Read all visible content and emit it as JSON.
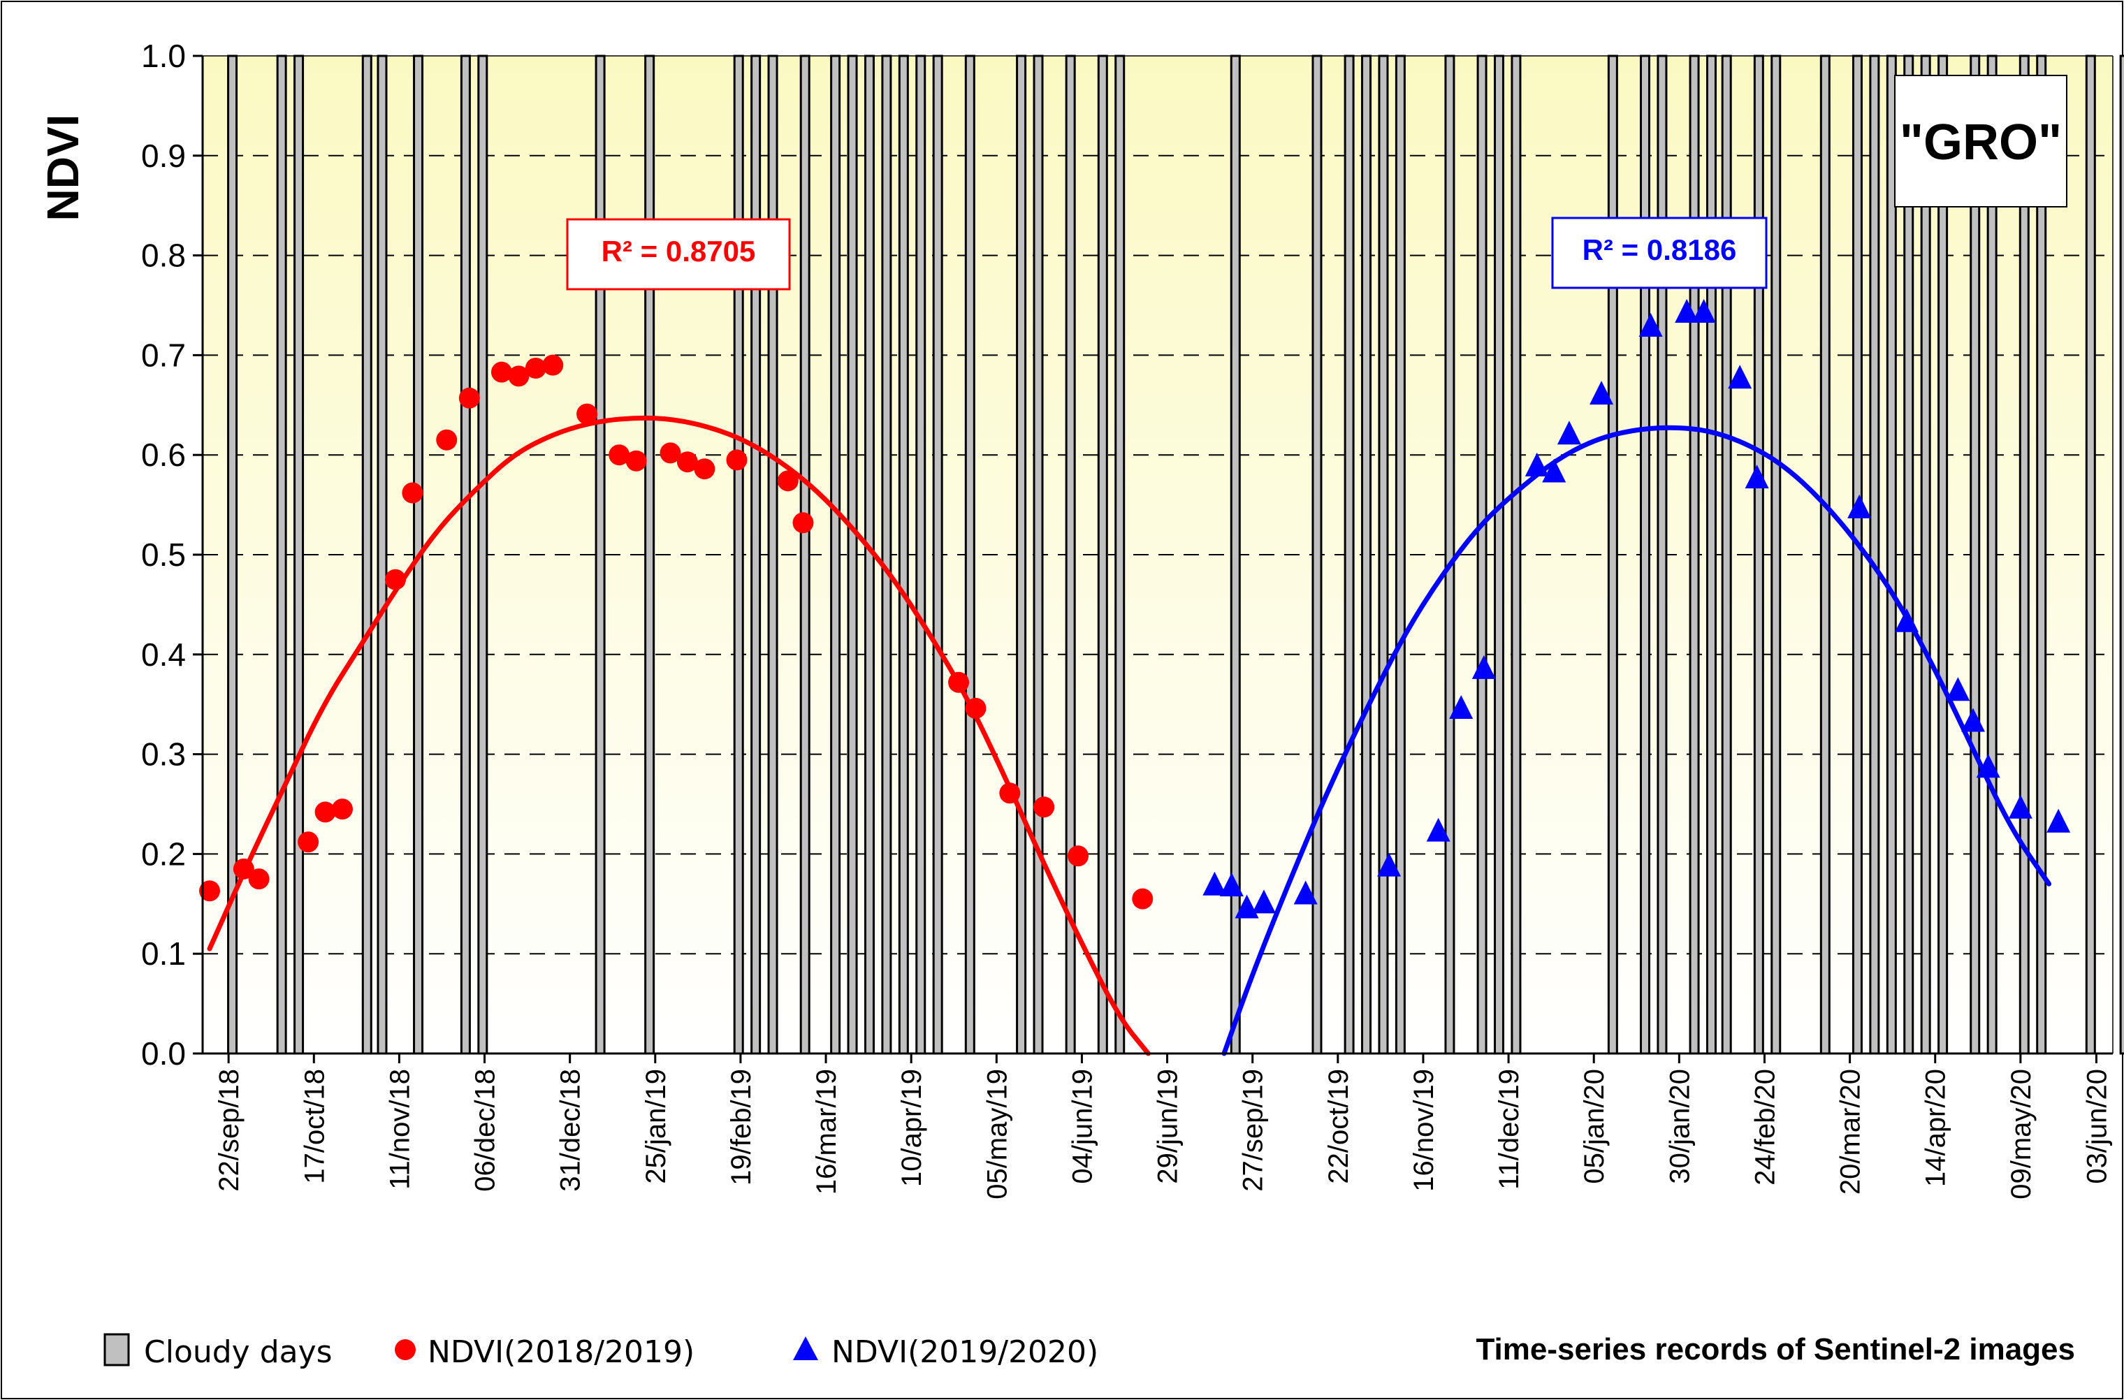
{
  "chart_data": {
    "type": "scatter",
    "ylabel": "NDVI",
    "xlabel": "Time-series records of Sentinel-2 images",
    "ylim": [
      0,
      1
    ],
    "yticks": [
      "0.0",
      "0.1",
      "0.2",
      "0.3",
      "0.4",
      "0.5",
      "0.6",
      "0.7",
      "0.8",
      "0.9",
      "1.0"
    ],
    "xlim": [
      0,
      100
    ],
    "xticks": [
      {
        "x": 1.0,
        "label": "22/sep/18"
      },
      {
        "x": 5.5,
        "label": "17/oct/18"
      },
      {
        "x": 10.0,
        "label": "11/nov/18"
      },
      {
        "x": 14.5,
        "label": "06/dec/18"
      },
      {
        "x": 19.0,
        "label": "31/dec/18"
      },
      {
        "x": 23.5,
        "label": "25/jan/19"
      },
      {
        "x": 28.0,
        "label": "19/feb/19"
      },
      {
        "x": 32.5,
        "label": "16/mar/19"
      },
      {
        "x": 37.0,
        "label": "10/apr/19"
      },
      {
        "x": 41.5,
        "label": "05/may/19"
      },
      {
        "x": 46.0,
        "label": "04/jun/19"
      },
      {
        "x": 50.5,
        "label": "29/jun/19"
      },
      {
        "x": 55.0,
        "label": "27/sep/19"
      },
      {
        "x": 59.5,
        "label": "22/oct/19"
      },
      {
        "x": 64.0,
        "label": "16/nov/19"
      },
      {
        "x": 68.5,
        "label": "11/dec/19"
      },
      {
        "x": 73.0,
        "label": "05/jan/20"
      },
      {
        "x": 77.5,
        "label": "30/jan/20"
      },
      {
        "x": 82.0,
        "label": "24/feb/20"
      },
      {
        "x": 86.5,
        "label": "20/mar/20"
      },
      {
        "x": 91.0,
        "label": "14/apr/20"
      },
      {
        "x": 95.5,
        "label": "09/may/20"
      },
      {
        "x": 99.5,
        "label": "03/jun/20"
      }
    ],
    "cloudy_days": {
      "name": "Cloudy days",
      "value": 1.0,
      "color": "#bfbfbf",
      "x": [
        1.2,
        3.8,
        4.7,
        8.3,
        9.1,
        11.0,
        13.5,
        14.4,
        20.6,
        23.2,
        27.9,
        28.8,
        29.7,
        31.4,
        33.0,
        33.9,
        34.8,
        35.7,
        36.6,
        37.5,
        38.4,
        40.1,
        42.8,
        43.7,
        45.4,
        47.1,
        48.0,
        54.1,
        58.4,
        60.1,
        61.0,
        61.9,
        62.8,
        65.4,
        67.1,
        68.0,
        68.9,
        74.0,
        75.7,
        76.6,
        78.3,
        79.2,
        80.0,
        81.7,
        82.6,
        85.2,
        86.9,
        87.8,
        88.7,
        89.6,
        90.5,
        91.4,
        93.1,
        94.0,
        95.7,
        96.6,
        99.2,
        101.0
      ]
    },
    "series": [
      {
        "name": "NDVI(2018/2019)",
        "marker": "circle",
        "color": "#ff0000",
        "points": [
          [
            0,
            0.163
          ],
          [
            1.8,
            0.185
          ],
          [
            2.6,
            0.175
          ],
          [
            5.2,
            0.212
          ],
          [
            6.1,
            0.242
          ],
          [
            7.0,
            0.245
          ],
          [
            9.8,
            0.475
          ],
          [
            10.7,
            0.562
          ],
          [
            12.5,
            0.615
          ],
          [
            13.7,
            0.657
          ],
          [
            15.4,
            0.683
          ],
          [
            16.3,
            0.679
          ],
          [
            17.2,
            0.687
          ],
          [
            18.1,
            0.69
          ],
          [
            19.9,
            0.641
          ],
          [
            21.6,
            0.6
          ],
          [
            22.5,
            0.594
          ],
          [
            24.3,
            0.602
          ],
          [
            25.2,
            0.593
          ],
          [
            26.1,
            0.586
          ],
          [
            27.8,
            0.595
          ],
          [
            30.5,
            0.574
          ],
          [
            31.3,
            0.532
          ],
          [
            39.5,
            0.372
          ],
          [
            40.4,
            0.346
          ],
          [
            42.2,
            0.261
          ],
          [
            44.0,
            0.247
          ],
          [
            45.8,
            0.198
          ],
          [
            49.2,
            0.155
          ]
        ],
        "trendline": {
          "type": "poly2",
          "r2_label": "R² = 0.8705",
          "curve": [
            [
              0,
              0.105
            ],
            [
              2,
              0.19
            ],
            [
              4,
              0.27
            ],
            [
              6,
              0.35
            ],
            [
              8,
              0.41
            ],
            [
              10,
              0.47
            ],
            [
              12,
              0.525
            ],
            [
              14,
              0.565
            ],
            [
              16,
              0.6
            ],
            [
              18,
              0.62
            ],
            [
              20,
              0.632
            ],
            [
              22,
              0.637
            ],
            [
              24,
              0.637
            ],
            [
              26,
              0.63
            ],
            [
              28,
              0.617
            ],
            [
              30,
              0.595
            ],
            [
              32,
              0.565
            ],
            [
              34,
              0.525
            ],
            [
              36,
              0.478
            ],
            [
              38,
              0.42
            ],
            [
              40,
              0.355
            ],
            [
              42,
              0.275
            ],
            [
              44,
              0.19
            ],
            [
              46,
              0.11
            ],
            [
              48,
              0.035
            ],
            [
              49.5,
              0.0
            ]
          ]
        }
      },
      {
        "name": "NDVI(2019/2020)",
        "marker": "triangle",
        "color": "#0000ff",
        "points": [
          [
            53.0,
            0.168
          ],
          [
            53.9,
            0.167
          ],
          [
            54.7,
            0.145
          ],
          [
            55.6,
            0.15
          ],
          [
            57.8,
            0.159
          ],
          [
            62.2,
            0.187
          ],
          [
            64.8,
            0.222
          ],
          [
            66.0,
            0.345
          ],
          [
            67.2,
            0.385
          ],
          [
            70.0,
            0.588
          ],
          [
            70.9,
            0.582
          ],
          [
            71.7,
            0.62
          ],
          [
            73.4,
            0.66
          ],
          [
            76.0,
            0.728
          ],
          [
            77.9,
            0.742
          ],
          [
            78.8,
            0.742
          ],
          [
            80.7,
            0.676
          ],
          [
            81.6,
            0.576
          ],
          [
            87.0,
            0.546
          ],
          [
            89.5,
            0.432
          ],
          [
            92.2,
            0.363
          ],
          [
            93.0,
            0.332
          ],
          [
            93.8,
            0.286
          ],
          [
            95.5,
            0.245
          ],
          [
            97.5,
            0.231
          ]
        ],
        "trendline": {
          "type": "poly2",
          "r2_label": "R² = 0.8186",
          "curve": [
            [
              53.5,
              0.0
            ],
            [
              55,
              0.08
            ],
            [
              57,
              0.175
            ],
            [
              59,
              0.265
            ],
            [
              61,
              0.345
            ],
            [
              63,
              0.42
            ],
            [
              65,
              0.48
            ],
            [
              67,
              0.53
            ],
            [
              69,
              0.565
            ],
            [
              71,
              0.595
            ],
            [
              73,
              0.615
            ],
            [
              75,
              0.625
            ],
            [
              77,
              0.628
            ],
            [
              79,
              0.625
            ],
            [
              81,
              0.612
            ],
            [
              83,
              0.59
            ],
            [
              85,
              0.555
            ],
            [
              87,
              0.51
            ],
            [
              89,
              0.455
            ],
            [
              91,
              0.385
            ],
            [
              93,
              0.305
            ],
            [
              95,
              0.225
            ],
            [
              97,
              0.17
            ]
          ]
        }
      }
    ],
    "annotations": {
      "site_label": "\"GRO\"",
      "r2_label_1": "R² = 0.8705",
      "r2_label_2": "R² = 0.8186"
    },
    "legend": [
      {
        "label": "Cloudy days",
        "marker": "bar"
      },
      {
        "label": "NDVI(2018/2019)",
        "marker": "circle"
      },
      {
        "label": "NDVI(2019/2020)",
        "marker": "triangle"
      }
    ],
    "legend_position": "bottom-left",
    "grid": true,
    "colors": {
      "plot_bg_top": "#fbf9c2",
      "plot_bg_bottom": "#ffffff",
      "cloud_fill": "#c0c0c0",
      "red": "#ff0000",
      "blue": "#0000ff"
    }
  }
}
